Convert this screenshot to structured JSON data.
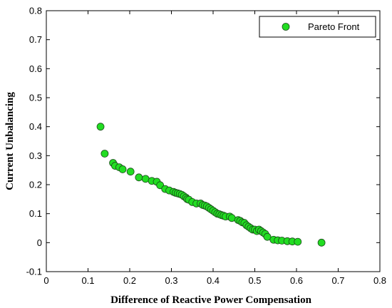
{
  "chart_data": {
    "type": "scatter",
    "title": "",
    "xlabel": "Difference of Reactive Power Compensation",
    "ylabel": "Current Unbalancing",
    "xlim": [
      0,
      0.8
    ],
    "ylim": [
      -0.1,
      0.8
    ],
    "xticks": [
      "0",
      "0.1",
      "0.2",
      "0.3",
      "0.4",
      "0.5",
      "0.6",
      "0.7",
      "0.8"
    ],
    "yticks": [
      "-0.1",
      "0",
      "0.1",
      "0.2",
      "0.3",
      "0.4",
      "0.5",
      "0.6",
      "0.7",
      "0.8"
    ],
    "xtick_values": [
      0,
      0.1,
      0.2,
      0.3,
      0.4,
      0.5,
      0.6,
      0.7,
      0.8
    ],
    "ytick_values": [
      -0.1,
      0,
      0.1,
      0.2,
      0.3,
      0.4,
      0.5,
      0.6,
      0.7,
      0.8
    ],
    "grid": false,
    "legend_position": "top-right",
    "series": [
      {
        "name": "Pareto Front",
        "color": "#22dd22",
        "edge_color": "#1a4d1a",
        "x": [
          0.13,
          0.14,
          0.16,
          0.165,
          0.175,
          0.183,
          0.202,
          0.222,
          0.238,
          0.253,
          0.265,
          0.273,
          0.285,
          0.295,
          0.305,
          0.31,
          0.315,
          0.32,
          0.325,
          0.33,
          0.335,
          0.338,
          0.342,
          0.35,
          0.36,
          0.37,
          0.375,
          0.38,
          0.385,
          0.39,
          0.395,
          0.4,
          0.405,
          0.41,
          0.415,
          0.42,
          0.425,
          0.43,
          0.44,
          0.445,
          0.46,
          0.465,
          0.47,
          0.475,
          0.48,
          0.485,
          0.49,
          0.495,
          0.5,
          0.505,
          0.51,
          0.515,
          0.52,
          0.525,
          0.53,
          0.545,
          0.555,
          0.565,
          0.578,
          0.59,
          0.603,
          0.66
        ],
        "y": [
          0.4,
          0.307,
          0.275,
          0.265,
          0.26,
          0.253,
          0.245,
          0.225,
          0.22,
          0.213,
          0.21,
          0.198,
          0.185,
          0.18,
          0.175,
          0.172,
          0.17,
          0.168,
          0.165,
          0.16,
          0.155,
          0.15,
          0.148,
          0.14,
          0.135,
          0.135,
          0.13,
          0.128,
          0.125,
          0.12,
          0.115,
          0.11,
          0.105,
          0.1,
          0.098,
          0.095,
          0.093,
          0.09,
          0.09,
          0.085,
          0.078,
          0.075,
          0.07,
          0.068,
          0.06,
          0.055,
          0.05,
          0.045,
          0.045,
          0.04,
          0.045,
          0.04,
          0.035,
          0.03,
          0.02,
          0.01,
          0.008,
          0.007,
          0.005,
          0.004,
          0.003,
          0.0
        ]
      }
    ]
  }
}
